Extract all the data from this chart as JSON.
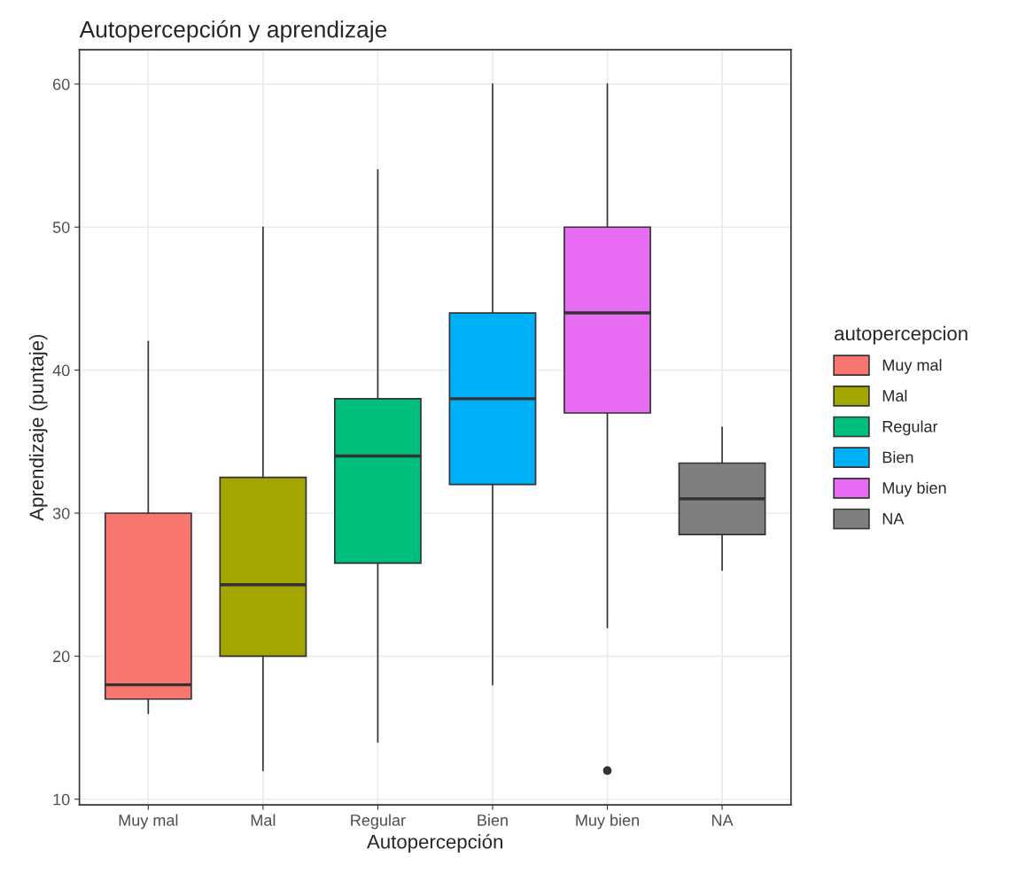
{
  "chart_data": {
    "type": "box",
    "title": "Autopercepción y aprendizaje",
    "xlabel": "Autopercepción",
    "ylabel": "Aprendizaje (puntaje)",
    "legend_title": "autopercepcion",
    "categories": [
      "Muy mal",
      "Mal",
      "Regular",
      "Bien",
      "Muy bien",
      "NA"
    ],
    "series": [
      {
        "name": "Muy mal",
        "color": "#f8766d",
        "boxes": [
          {
            "low": 16,
            "q1": 17,
            "median": 18,
            "q3": 30,
            "high": 42
          },
          null,
          null,
          null,
          null,
          null
        ]
      },
      {
        "name": "Mal",
        "color": "#a3a500",
        "boxes": [
          null,
          {
            "low": 12,
            "q1": 20,
            "median": 25,
            "q3": 32.5,
            "high": 50
          },
          null,
          null,
          null,
          null
        ]
      },
      {
        "name": "Regular",
        "color": "#00bf7d",
        "boxes": [
          null,
          null,
          {
            "low": 14,
            "q1": 26.5,
            "median": 34,
            "q3": 38,
            "high": 54
          },
          null,
          null,
          null
        ]
      },
      {
        "name": "Bien",
        "color": "#00b0f6",
        "boxes": [
          null,
          null,
          null,
          {
            "low": 18,
            "q1": 32,
            "median": 38,
            "q3": 44,
            "high": 60
          },
          null,
          null
        ]
      },
      {
        "name": "Muy bien",
        "color": "#e76bf3",
        "boxes": [
          null,
          null,
          null,
          null,
          {
            "low": 22,
            "q1": 37,
            "median": 44,
            "q3": 50,
            "high": 60,
            "outliers": [
              12
            ]
          },
          null
        ]
      },
      {
        "name": "NA",
        "color": "#7f7f7f",
        "boxes": [
          null,
          null,
          null,
          null,
          null,
          {
            "low": 26,
            "q1": 28.5,
            "median": 31,
            "q3": 33.5,
            "high": 36
          }
        ]
      }
    ],
    "ylim": [
      9.6,
      62.4
    ],
    "yticks": [
      10,
      20,
      30,
      40,
      50,
      60
    ],
    "grid": true,
    "legend": "right"
  }
}
